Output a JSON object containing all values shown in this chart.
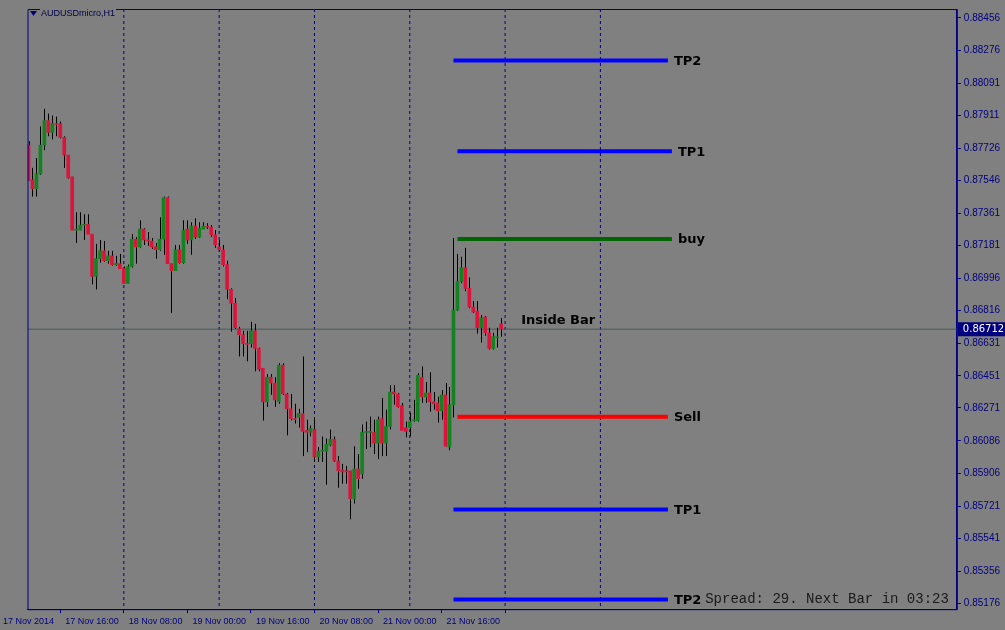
{
  "chart_data": {
    "type": "candlestick",
    "title": "AUDUSDmicro,H1",
    "x": [
      "2014-11-17T00:00",
      "2014-11-17T01:00",
      "2014-11-17T02:00",
      "2014-11-17T03:00",
      "2014-11-17T04:00",
      "2014-11-17T05:00",
      "2014-11-17T06:00",
      "2014-11-17T07:00",
      "2014-11-17T08:00",
      "2014-11-17T09:00",
      "2014-11-17T10:00",
      "2014-11-17T11:00",
      "2014-11-17T12:00",
      "2014-11-17T13:00",
      "2014-11-17T14:00",
      "2014-11-17T15:00",
      "2014-11-17T16:00",
      "2014-11-17T17:00",
      "2014-11-17T18:00",
      "2014-11-17T19:00",
      "2014-11-17T20:00",
      "2014-11-17T21:00",
      "2014-11-17T22:00",
      "2014-11-17T23:00",
      "2014-11-18T00:00",
      "2014-11-18T01:00",
      "2014-11-18T02:00",
      "2014-11-18T03:00",
      "2014-11-18T04:00",
      "2014-11-18T05:00",
      "2014-11-18T06:00",
      "2014-11-18T07:00",
      "2014-11-18T08:00",
      "2014-11-18T09:00",
      "2014-11-18T10:00",
      "2014-11-18T11:00",
      "2014-11-18T12:00",
      "2014-11-18T13:00",
      "2014-11-18T14:00",
      "2014-11-18T15:00",
      "2014-11-18T16:00",
      "2014-11-18T17:00",
      "2014-11-18T18:00",
      "2014-11-18T19:00",
      "2014-11-18T20:00",
      "2014-11-18T21:00",
      "2014-11-18T22:00",
      "2014-11-18T23:00",
      "2014-11-19T00:00",
      "2014-11-19T01:00",
      "2014-11-19T02:00",
      "2014-11-19T03:00",
      "2014-11-19T04:00",
      "2014-11-19T05:00",
      "2014-11-19T06:00",
      "2014-11-19T07:00",
      "2014-11-19T08:00",
      "2014-11-19T09:00",
      "2014-11-19T10:00",
      "2014-11-19T11:00",
      "2014-11-19T12:00",
      "2014-11-19T13:00",
      "2014-11-19T14:00",
      "2014-11-19T15:00",
      "2014-11-19T16:00",
      "2014-11-19T17:00",
      "2014-11-19T18:00",
      "2014-11-19T19:00",
      "2014-11-19T20:00",
      "2014-11-19T21:00",
      "2014-11-19T22:00",
      "2014-11-19T23:00",
      "2014-11-20T00:00",
      "2014-11-20T01:00",
      "2014-11-20T02:00",
      "2014-11-20T03:00",
      "2014-11-20T04:00",
      "2014-11-20T05:00",
      "2014-11-20T06:00",
      "2014-11-20T07:00",
      "2014-11-20T08:00",
      "2014-11-20T09:00",
      "2014-11-20T10:00",
      "2014-11-20T11:00",
      "2014-11-20T12:00",
      "2014-11-20T13:00",
      "2014-11-20T14:00",
      "2014-11-20T15:00",
      "2014-11-20T16:00",
      "2014-11-20T17:00",
      "2014-11-20T18:00",
      "2014-11-20T19:00",
      "2014-11-20T20:00",
      "2014-11-20T21:00",
      "2014-11-20T22:00",
      "2014-11-20T23:00",
      "2014-11-21T00:00",
      "2014-11-21T01:00",
      "2014-11-21T02:00",
      "2014-11-21T03:00",
      "2014-11-21T04:00",
      "2014-11-21T05:00",
      "2014-11-21T06:00",
      "2014-11-21T07:00",
      "2014-11-21T08:00",
      "2014-11-21T09:00",
      "2014-11-21T10:00",
      "2014-11-21T11:00",
      "2014-11-21T12:00",
      "2014-11-21T13:00",
      "2014-11-21T14:00",
      "2014-11-21T15:00",
      "2014-11-21T16:00",
      "2014-11-21T17:00",
      "2014-11-21T18:00",
      "2014-11-21T19:00",
      "2014-11-21T20:00",
      "2014-11-21T21:00",
      "2014-11-21T22:00",
      "2014-11-21T23:00"
    ],
    "ohlc": [
      [
        0.87743,
        0.87765,
        0.87544,
        0.87544
      ],
      [
        0.87549,
        0.87616,
        0.87455,
        0.87499
      ],
      [
        0.87499,
        0.87671,
        0.87455,
        0.87582
      ],
      [
        0.87582,
        0.87848,
        0.87577,
        0.87743
      ],
      [
        0.87743,
        0.87947,
        0.87715,
        0.87881
      ],
      [
        0.87881,
        0.8792,
        0.87793,
        0.87815
      ],
      [
        0.87815,
        0.87909,
        0.87776,
        0.87864
      ],
      [
        0.87864,
        0.87903,
        0.87793,
        0.87859
      ],
      [
        0.87864,
        0.87876,
        0.87781,
        0.87787
      ],
      [
        0.87787,
        0.87793,
        0.87616,
        0.87687
      ],
      [
        0.87687,
        0.87687,
        0.87555,
        0.8756
      ],
      [
        0.87566,
        0.87566,
        0.87267,
        0.87267
      ],
      [
        0.87267,
        0.87367,
        0.87195,
        0.87273
      ],
      [
        0.87267,
        0.87367,
        0.87267,
        0.87295
      ],
      [
        0.87295,
        0.87356,
        0.87212,
        0.873
      ],
      [
        0.873,
        0.87356,
        0.87245,
        0.87245
      ],
      [
        0.87245,
        0.87245,
        0.86963,
        0.87007
      ],
      [
        0.87007,
        0.8719,
        0.86935,
        0.87107
      ],
      [
        0.87107,
        0.87212,
        0.87085,
        0.87151
      ],
      [
        0.87151,
        0.87206,
        0.8709,
        0.87096
      ],
      [
        0.87096,
        0.87151,
        0.87079,
        0.87123
      ],
      [
        0.87123,
        0.87151,
        0.87068,
        0.87074
      ],
      [
        0.87074,
        0.87123,
        0.87068,
        0.87079
      ],
      [
        0.87079,
        0.87134,
        0.87051,
        0.87051
      ],
      [
        0.87051,
        0.87063,
        0.86969,
        0.86969
      ],
      [
        0.86969,
        0.87074,
        0.86969,
        0.87063
      ],
      [
        0.87063,
        0.87245,
        0.87057,
        0.87217
      ],
      [
        0.87217,
        0.87228,
        0.87079,
        0.87173
      ],
      [
        0.87173,
        0.87322,
        0.87168,
        0.87273
      ],
      [
        0.87273,
        0.87278,
        0.87184,
        0.87212
      ],
      [
        0.87212,
        0.87256,
        0.87179,
        0.87206
      ],
      [
        0.87206,
        0.87223,
        0.87162,
        0.87173
      ],
      [
        0.87173,
        0.87195,
        0.87107,
        0.87157
      ],
      [
        0.87157,
        0.87339,
        0.87151,
        0.87217
      ],
      [
        0.87217,
        0.87455,
        0.87129,
        0.8745
      ],
      [
        0.8745,
        0.87455,
        0.87079,
        0.87079
      ],
      [
        0.87079,
        0.87079,
        0.86803,
        0.8704
      ],
      [
        0.8704,
        0.87184,
        0.8704,
        0.87157
      ],
      [
        0.87157,
        0.87184,
        0.87079,
        0.87085
      ],
      [
        0.87085,
        0.87322,
        0.87079,
        0.87267
      ],
      [
        0.87273,
        0.87322,
        0.8719,
        0.87212
      ],
      [
        0.87212,
        0.87311,
        0.87129,
        0.87289
      ],
      [
        0.87289,
        0.87333,
        0.87217,
        0.87228
      ],
      [
        0.87228,
        0.87311,
        0.87223,
        0.87278
      ],
      [
        0.87273,
        0.87311,
        0.87273,
        0.87289
      ],
      [
        0.87289,
        0.87306,
        0.87273,
        0.87284
      ],
      [
        0.87284,
        0.87295,
        0.87228,
        0.8724
      ],
      [
        0.8724,
        0.87267,
        0.87168,
        0.87184
      ],
      [
        0.87173,
        0.87212,
        0.87146,
        0.87157
      ],
      [
        0.87157,
        0.87184,
        0.87063,
        0.87074
      ],
      [
        0.87074,
        0.87096,
        0.8688,
        0.86935
      ],
      [
        0.86935,
        0.86941,
        0.86698,
        0.86858
      ],
      [
        0.86858,
        0.86886,
        0.86714,
        0.8672
      ],
      [
        0.86714,
        0.86725,
        0.86559,
        0.86681
      ],
      [
        0.86681,
        0.86703,
        0.86559,
        0.86631
      ],
      [
        0.86631,
        0.86703,
        0.86532,
        0.86626
      ],
      [
        0.86631,
        0.86753,
        0.86609,
        0.86703
      ],
      [
        0.86703,
        0.86742,
        0.86476,
        0.86604
      ],
      [
        0.86604,
        0.86609,
        0.86476,
        0.86487
      ],
      [
        0.86493,
        0.86493,
        0.862,
        0.86305
      ],
      [
        0.86305,
        0.8646,
        0.86277,
        0.86443
      ],
      [
        0.86443,
        0.8646,
        0.86344,
        0.8641
      ],
      [
        0.8641,
        0.86443,
        0.86277,
        0.86316
      ],
      [
        0.86305,
        0.86521,
        0.86294,
        0.8651
      ],
      [
        0.8651,
        0.86521,
        0.86344,
        0.86349
      ],
      [
        0.86349,
        0.86355,
        0.86117,
        0.86266
      ],
      [
        0.86266,
        0.86349,
        0.862,
        0.86211
      ],
      [
        0.86211,
        0.86294,
        0.86183,
        0.86205
      ],
      [
        0.86217,
        0.86266,
        0.86161,
        0.86239
      ],
      [
        0.86239,
        0.86559,
        0.86001,
        0.86139
      ],
      [
        0.86145,
        0.86205,
        0.86023,
        0.86134
      ],
      [
        0.86134,
        0.86172,
        0.86111,
        0.86156
      ],
      [
        0.8615,
        0.86217,
        0.85968,
        0.85995
      ],
      [
        0.85995,
        0.86051,
        0.85968,
        0.86028
      ],
      [
        0.86028,
        0.86111,
        0.85968,
        0.86034
      ],
      [
        0.86028,
        0.861,
        0.8584,
        0.86067
      ],
      [
        0.86062,
        0.8615,
        0.86056,
        0.86095
      ],
      [
        0.86095,
        0.86111,
        0.85968,
        0.85973
      ],
      [
        0.85973,
        0.86001,
        0.85824,
        0.85918
      ],
      [
        0.85923,
        0.85957,
        0.85846,
        0.85912
      ],
      [
        0.85918,
        0.85946,
        0.85846,
        0.85912
      ],
      [
        0.85918,
        0.85918,
        0.85647,
        0.85763
      ],
      [
        0.85763,
        0.86056,
        0.85735,
        0.85929
      ],
      [
        0.85929,
        0.86012,
        0.85818,
        0.85874
      ],
      [
        0.85901,
        0.86178,
        0.85874,
        0.86134
      ],
      [
        0.86134,
        0.86194,
        0.8604,
        0.86139
      ],
      [
        0.86134,
        0.86222,
        0.86051,
        0.86139
      ],
      [
        0.86134,
        0.86205,
        0.86012,
        0.86073
      ],
      [
        0.86073,
        0.86222,
        0.85984,
        0.86205
      ],
      [
        0.86211,
        0.86327,
        0.86001,
        0.86073
      ],
      [
        0.86073,
        0.86261,
        0.86001,
        0.86167
      ],
      [
        0.86167,
        0.86399,
        0.8615,
        0.8636
      ],
      [
        0.8636,
        0.86399,
        0.86288,
        0.86349
      ],
      [
        0.86349,
        0.86355,
        0.86272,
        0.86277
      ],
      [
        0.86283,
        0.86299,
        0.86145,
        0.86145
      ],
      [
        0.86161,
        0.86194,
        0.86106,
        0.86139
      ],
      [
        0.86161,
        0.86244,
        0.86111,
        0.86194
      ],
      [
        0.862,
        0.86316,
        0.86194,
        0.86205
      ],
      [
        0.862,
        0.86465,
        0.86194,
        0.86454
      ],
      [
        0.86443,
        0.86504,
        0.86299,
        0.86333
      ],
      [
        0.86333,
        0.86416,
        0.86299,
        0.86355
      ],
      [
        0.86355,
        0.86471,
        0.8625,
        0.86305
      ],
      [
        0.86305,
        0.8636,
        0.86261,
        0.86294
      ],
      [
        0.86299,
        0.86333,
        0.86189,
        0.86255
      ],
      [
        0.86255,
        0.86371,
        0.86205,
        0.86344
      ],
      [
        0.86344,
        0.8641,
        0.86056,
        0.86056
      ],
      [
        0.86051,
        0.86388,
        0.86034,
        0.86288
      ],
      [
        0.86288,
        0.87223,
        0.86217,
        0.86819
      ],
      [
        0.86819,
        0.87134,
        0.86814,
        0.8698
      ],
      [
        0.8698,
        0.87118,
        0.86969,
        0.87057
      ],
      [
        0.87057,
        0.87168,
        0.86924,
        0.86941
      ],
      [
        0.86941,
        0.87002,
        0.8683,
        0.86836
      ],
      [
        0.86836,
        0.86869,
        0.86803,
        0.86808
      ],
      [
        0.86814,
        0.86869,
        0.86687,
        0.8672
      ],
      [
        0.8672,
        0.86792,
        0.86637,
        0.86775
      ],
      [
        0.86781,
        0.86786,
        0.86675,
        0.86692
      ],
      [
        0.86692,
        0.8672,
        0.86598,
        0.86604
      ],
      [
        0.86604,
        0.86692,
        0.86598,
        0.8667
      ],
      [
        0.86664,
        0.8672,
        0.86609,
        0.8667
      ],
      [
        0.86742,
        0.86775,
        0.8667,
        0.86712
      ]
    ],
    "colors": [
      "#dc143c",
      "#dc143c",
      "#14821e",
      "#14821e",
      "#14821e",
      "#dc143c",
      "#14821e",
      "#dc143c",
      "#dc143c",
      "#dc143c",
      "#dc143c",
      "#dc143c",
      "#14821e",
      "#14821e",
      "#14821e",
      "#dc143c",
      "#dc143c",
      "#14821e",
      "#14821e",
      "#dc143c",
      "#14821e",
      "#dc143c",
      "#14821e",
      "#dc143c",
      "#dc143c",
      "#14821e",
      "#14821e",
      "#dc143c",
      "#14821e",
      "#dc143c",
      "#dc143c",
      "#dc143c",
      "#dc143c",
      "#14821e",
      "#14821e",
      "#dc143c",
      "#dc143c",
      "#14821e",
      "#dc143c",
      "#14821e",
      "#dc143c",
      "#14821e",
      "#dc143c",
      "#14821e",
      "#14821e",
      "#dc143c",
      "#dc143c",
      "#dc143c",
      "#dc143c",
      "#dc143c",
      "#dc143c",
      "#dc143c",
      "#dc143c",
      "#dc143c",
      "#dc143c",
      "#dc143c",
      "#14821e",
      "#dc143c",
      "#dc143c",
      "#dc143c",
      "#14821e",
      "#dc143c",
      "#dc143c",
      "#14821e",
      "#dc143c",
      "#dc143c",
      "#dc143c",
      "#dc143c",
      "#14821e",
      "#dc143c",
      "#dc143c",
      "#14821e",
      "#dc143c",
      "#14821e",
      "#14821e",
      "#14821e",
      "#14821e",
      "#dc143c",
      "#dc143c",
      "#dc143c",
      "#dc143c",
      "#dc143c",
      "#14821e",
      "#dc143c",
      "#14821e",
      "#14821e",
      "#14821e",
      "#dc143c",
      "#14821e",
      "#dc143c",
      "#14821e",
      "#14821e",
      "#dc143c",
      "#dc143c",
      "#dc143c",
      "#dc143c",
      "#14821e",
      "#14821e",
      "#14821e",
      "#dc143c",
      "#14821e",
      "#dc143c",
      "#dc143c",
      "#dc143c",
      "#14821e",
      "#dc143c",
      "#14821e",
      "#14821e",
      "#14821e",
      "#14821e",
      "#dc143c",
      "#dc143c",
      "#dc143c",
      "#dc143c",
      "#14821e",
      "#dc143c",
      "#dc143c",
      "#14821e",
      "#14821e",
      "#dc143c"
    ],
    "series": [
      {
        "type": "line",
        "name": "TP2",
        "color": "#0000ff",
        "x": [
          "2014-11-21T11:00",
          "2014-11-23T17:00"
        ],
        "values": [
          0.88218,
          0.88218
        ]
      },
      {
        "type": "line",
        "name": "TP1",
        "color": "#0000ff",
        "x": [
          "2014-11-21T12:00",
          "2014-11-23T18:00"
        ],
        "values": [
          0.87709,
          0.87709
        ]
      },
      {
        "type": "line",
        "name": "buy",
        "color": "#006400",
        "x": [
          "2014-11-21T12:00",
          "2014-11-23T18:00"
        ],
        "values": [
          0.87217,
          0.87217
        ]
      },
      {
        "type": "line",
        "name": "Sell",
        "color": "#ff0000",
        "x": [
          "2014-11-21T12:00",
          "2014-11-23T17:00"
        ],
        "values": [
          0.86222,
          0.86222
        ]
      },
      {
        "type": "line",
        "name": "TP1",
        "color": "#0000ff",
        "x": [
          "2014-11-21T11:00",
          "2014-11-23T17:00"
        ],
        "values": [
          0.85702,
          0.85702
        ]
      },
      {
        "type": "line",
        "name": "TP2",
        "color": "#0000ff",
        "x": [
          "2014-11-21T11:00",
          "2014-11-23T17:00"
        ],
        "values": [
          0.85198,
          0.85198
        ]
      }
    ],
    "ref_lines": [
      {
        "axis": "x",
        "value": "2014-11-18T00:00",
        "color": "#000080",
        "line_style": "dashed"
      },
      {
        "axis": "x",
        "value": "2014-11-19T00:00",
        "color": "#000080",
        "line_style": "dashed"
      },
      {
        "axis": "x",
        "value": "2014-11-20T00:00",
        "color": "#000080",
        "line_style": "dashed"
      },
      {
        "axis": "x",
        "value": "2014-11-21T00:00",
        "color": "#000080",
        "line_style": "dashed"
      },
      {
        "axis": "x",
        "value": "2014-11-22T00:00",
        "color": "#000080",
        "line_style": "dashed"
      },
      {
        "axis": "x",
        "value": "2014-11-23T00:00",
        "color": "#000080",
        "line_style": "dashed"
      },
      {
        "axis": "y",
        "value": 0.86712,
        "label": "0.86712",
        "color": "#465a5a",
        "line_style": "solid"
      }
    ],
    "annotations": [
      {
        "text": "Inside Bar",
        "x": "2014-11-21T23:00",
        "y": 0.86712
      },
      "Spread: 29. Next Bar in 03:23"
    ],
    "xlim": [
      "2014-11-16T23:45",
      "2014-11-26T17:45"
    ],
    "xticks": [
      {
        "value": "2014-11-17T00:00",
        "label": "17 Nov 2014"
      },
      {
        "value": "2014-11-17T16:00",
        "label": "17 Nov 16:00"
      },
      {
        "value": "2014-11-18T08:00",
        "label": "18 Nov 08:00"
      },
      {
        "value": "2014-11-19T00:00",
        "label": "19 Nov 00:00"
      },
      {
        "value": "2014-11-19T16:00",
        "label": "19 Nov 16:00"
      },
      {
        "value": "2014-11-20T08:00",
        "label": "20 Nov 08:00"
      },
      {
        "value": "2014-11-21T00:00",
        "label": "21 Nov 00:00"
      },
      {
        "value": "2014-11-21T16:00",
        "label": "21 Nov 16:00"
      }
    ],
    "ylim": [
      0.85143,
      0.88506
    ],
    "yticks": [
      0.88456,
      0.88276,
      0.88091,
      0.87911,
      0.87726,
      0.87546,
      0.87361,
      0.87181,
      0.86996,
      0.86816,
      0.86631,
      0.86451,
      0.86271,
      0.86086,
      0.85906,
      0.85721,
      0.85541,
      0.85356,
      0.85176
    ]
  }
}
